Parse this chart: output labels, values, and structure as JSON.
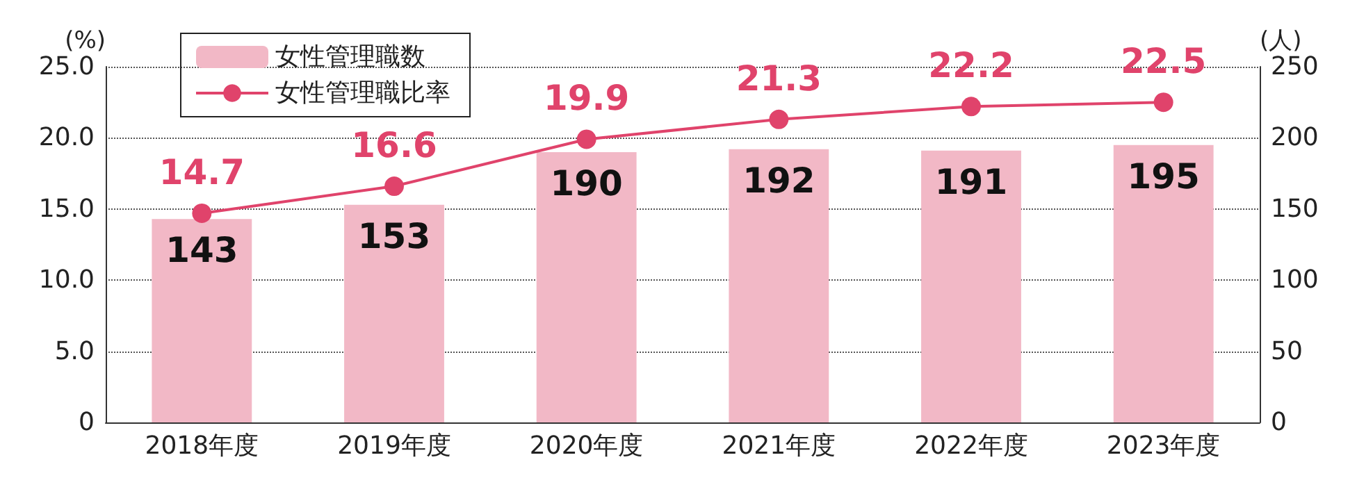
{
  "chart_data": {
    "type": "bar",
    "ylabel": "(%)",
    "y2label": "(人)",
    "categories": [
      "2018年度",
      "2019年度",
      "2020年度",
      "2021年度",
      "2022年度",
      "2023年度"
    ],
    "series": [
      {
        "name": "女性管理職数",
        "axis": "y2",
        "color": "#f2b8c6",
        "values": [
          143,
          153,
          190,
          192,
          191,
          195
        ]
      },
      {
        "name": "女性管理職比率",
        "type": "line",
        "color": "#e0436b",
        "marker": "circle",
        "values": [
          14.7,
          16.6,
          19.9,
          21.3,
          22.2,
          22.5
        ]
      }
    ],
    "ylim": [
      0,
      25
    ],
    "yticks": [
      0,
      {
        "value": 5,
        "label": "5.0"
      },
      {
        "value": 10,
        "label": "10.0"
      },
      {
        "value": 15,
        "label": "15.0"
      },
      {
        "value": 20,
        "label": "20.0"
      },
      {
        "value": 25,
        "label": "25.0"
      }
    ],
    "y2lim": [
      0,
      250
    ],
    "y2ticks": [
      0,
      50,
      100,
      150,
      200,
      250
    ],
    "grid": "y",
    "legend": "top left",
    "data_labels": true
  }
}
